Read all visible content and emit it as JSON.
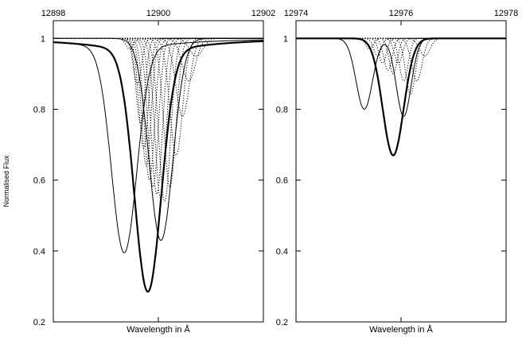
{
  "chart_data": [
    {
      "type": "line",
      "xlabel": "Wavelength in Å",
      "ylabel": "Normalised Flux",
      "xlim": [
        12898,
        12902
      ],
      "ylim": [
        0.2,
        1.05
      ],
      "x_ticks": [
        12898,
        12900,
        12902
      ],
      "x_tick_labels": [
        "12898",
        "12900",
        "12902"
      ],
      "y_ticks": [
        0.2,
        0.4,
        0.6,
        0.8,
        1.0
      ],
      "y_tick_labels": [
        "0.2",
        "0.4",
        "0.6",
        "0.8",
        "1"
      ],
      "x_ticks_position": "top",
      "grid": false,
      "legend": "none",
      "series": [
        {
          "style": "thick-solid",
          "center": 12899.8,
          "depth": 0.68,
          "width": 0.36,
          "wings": 0.035
        },
        {
          "style": "thin-solid",
          "center": 12899.35,
          "depth": 0.58,
          "width": 0.34,
          "wings": 0.025
        },
        {
          "style": "thin-solid",
          "center": 12900.05,
          "depth": 0.57,
          "width": 0.32,
          "wings": 0.0
        },
        {
          "style": "dotted",
          "center": 12899.45,
          "depth": 0.03,
          "width": 0.1
        },
        {
          "style": "dotted",
          "center": 12899.6,
          "depth": 0.13,
          "width": 0.11
        },
        {
          "style": "dotted",
          "center": 12899.66,
          "depth": 0.24,
          "width": 0.12
        },
        {
          "style": "dotted",
          "center": 12899.72,
          "depth": 0.31,
          "width": 0.13
        },
        {
          "style": "dotted",
          "center": 12899.77,
          "depth": 0.36,
          "width": 0.13
        },
        {
          "style": "dotted",
          "center": 12899.83,
          "depth": 0.4,
          "width": 0.14
        },
        {
          "style": "dotted",
          "center": 12899.9,
          "depth": 0.42,
          "width": 0.14
        },
        {
          "style": "dotted",
          "center": 12899.97,
          "depth": 0.44,
          "width": 0.15
        },
        {
          "style": "dotted",
          "center": 12900.04,
          "depth": 0.45,
          "width": 0.15
        },
        {
          "style": "dotted",
          "center": 12900.12,
          "depth": 0.46,
          "width": 0.16
        },
        {
          "style": "dotted",
          "center": 12900.22,
          "depth": 0.42,
          "width": 0.16
        },
        {
          "style": "dotted",
          "center": 12900.34,
          "depth": 0.33,
          "width": 0.17
        },
        {
          "style": "dotted",
          "center": 12900.46,
          "depth": 0.22,
          "width": 0.18
        },
        {
          "style": "dotted",
          "center": 12900.58,
          "depth": 0.12,
          "width": 0.18
        },
        {
          "style": "dotted",
          "center": 12900.72,
          "depth": 0.05,
          "width": 0.18
        }
      ]
    },
    {
      "type": "line",
      "xlabel": "Wavelength in Å",
      "ylabel": "",
      "xlim": [
        12974,
        12978
      ],
      "ylim": [
        0.2,
        1.05
      ],
      "x_ticks": [
        12974,
        12976,
        12978
      ],
      "x_tick_labels": [
        "12974",
        "12976",
        "12978"
      ],
      "y_ticks": [
        0.2,
        0.4,
        0.6,
        0.8,
        1.0
      ],
      "y_tick_labels": [
        "0.2",
        "0.4",
        "0.6",
        "0.8",
        "1"
      ],
      "x_ticks_position": "top",
      "grid": false,
      "legend": "none",
      "series": [
        {
          "style": "thick-solid",
          "center": 12975.85,
          "depth": 0.33,
          "width": 0.28,
          "wings": 0.0
        },
        {
          "style": "thin-solid",
          "center": 12975.3,
          "depth": 0.2,
          "width": 0.22,
          "wings": 0.0,
          "extra": [
            12976.05,
            0.22,
            0.2
          ]
        },
        {
          "style": "dotted",
          "center": 12975.4,
          "depth": 0.03,
          "width": 0.1
        },
        {
          "style": "dotted",
          "center": 12975.55,
          "depth": 0.05,
          "width": 0.1
        },
        {
          "style": "dotted",
          "center": 12975.65,
          "depth": 0.07,
          "width": 0.1
        },
        {
          "style": "dotted",
          "center": 12975.75,
          "depth": 0.09,
          "width": 0.11
        },
        {
          "style": "dotted",
          "center": 12975.85,
          "depth": 0.1,
          "width": 0.11
        },
        {
          "style": "dotted",
          "center": 12975.95,
          "depth": 0.07,
          "width": 0.11
        },
        {
          "style": "dotted",
          "center": 12976.05,
          "depth": 0.12,
          "width": 0.12
        },
        {
          "style": "dotted",
          "center": 12976.18,
          "depth": 0.16,
          "width": 0.13
        },
        {
          "style": "dotted",
          "center": 12976.3,
          "depth": 0.12,
          "width": 0.14
        },
        {
          "style": "dotted",
          "center": 12976.45,
          "depth": 0.05,
          "width": 0.14
        }
      ]
    }
  ]
}
